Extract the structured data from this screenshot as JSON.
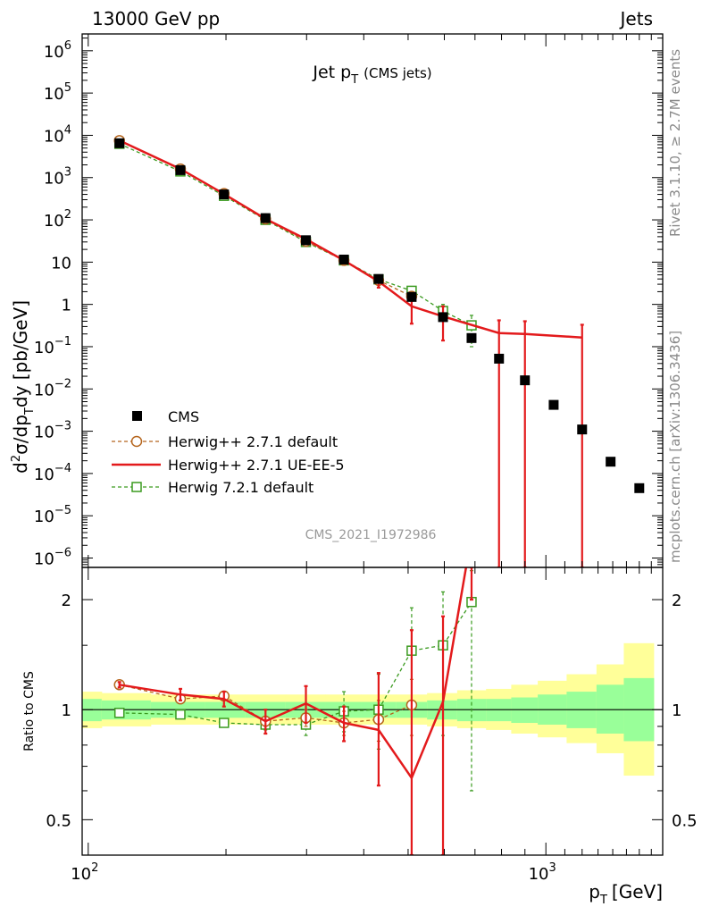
{
  "header": {
    "left": "13000 GeV pp",
    "right": "Jets"
  },
  "side": {
    "rivet": "Rivet 3.1.10, ≥ 2.7M events",
    "mcplots": "mcplots.cern.ch [arXiv:1306.3436]"
  },
  "annotation": "CMS_2021_I1972986",
  "colors": {
    "cms": "#000000",
    "h271def": "#b5651d",
    "h271ue": "#e31a1c",
    "h721": "#3a9a1f",
    "band_inner": "#99ff99",
    "band_outer": "#ffff99"
  },
  "chart_data": [
    {
      "type": "scatter",
      "panel": "main",
      "title": "Jet p_T (CMS jets)",
      "title_main": "Jet p",
      "title_sub": "T",
      "title_extra": "(CMS jets)",
      "ylabel": "d²σ/dp_T dy [pb/GeV]",
      "ylabel_parts": [
        "d",
        "2",
        "σ/dp",
        "T",
        "dy [pb/GeV]"
      ],
      "yscale": "log",
      "ylim": [
        6e-07,
        2500000.0
      ],
      "xscale": "log",
      "xlim": [
        97,
        1800
      ],
      "yticks": [
        {
          "v": 1000000.0,
          "m": "10",
          "e": "6"
        },
        {
          "v": 100000.0,
          "m": "10",
          "e": "5"
        },
        {
          "v": 10000.0,
          "m": "10",
          "e": "4"
        },
        {
          "v": 1000.0,
          "m": "10",
          "e": "3"
        },
        {
          "v": 100,
          "m": "10",
          "e": "2"
        },
        {
          "v": 10,
          "m": "10",
          "e": ""
        },
        {
          "v": 1,
          "m": "1",
          "e": ""
        },
        {
          "v": 0.1,
          "m": "10",
          "e": "−1"
        },
        {
          "v": 0.01,
          "m": "10",
          "e": "−2"
        },
        {
          "v": 0.001,
          "m": "10",
          "e": "−3"
        },
        {
          "v": 0.0001,
          "m": "10",
          "e": "−4"
        },
        {
          "v": 1e-05,
          "m": "10",
          "e": "−5"
        },
        {
          "v": 1e-06,
          "m": "10",
          "e": "−6"
        }
      ],
      "legend": {
        "placement": "lower-left",
        "entries": [
          "CMS",
          "Herwig++ 2.7.1 default",
          "Herwig++ 2.7.1 UE-EE-5",
          "Herwig 7.2.1 default"
        ]
      },
      "series": [
        {
          "name": "CMS",
          "x": [
            117,
            159,
            198,
            244,
            299,
            362,
            431,
            509,
            596,
            688,
            790,
            900,
            1040,
            1200,
            1385,
            1600
          ],
          "y": [
            6500,
            1500,
            400,
            110,
            33,
            11.5,
            4.0,
            1.5,
            0.5,
            0.16,
            0.052,
            0.016,
            0.0042,
            0.0011,
            0.00019,
            4.5e-05
          ]
        },
        {
          "name": "Herwig++ 2.7.1 default",
          "x": [
            117,
            159,
            198,
            244,
            299,
            362,
            431,
            509
          ],
          "y": [
            7500,
            1600,
            420,
            105,
            31,
            11,
            3.7,
            1.55
          ],
          "err_lo": [
            7300,
            1560,
            405,
            100,
            29,
            10.2,
            3.3,
            1.25
          ],
          "err_hi": [
            7700,
            1640,
            435,
            110,
            33,
            11.8,
            4.1,
            1.85
          ]
        },
        {
          "name": "Herwig++ 2.7.1 UE-EE-5",
          "x": [
            117,
            159,
            198,
            244,
            299,
            362,
            431,
            509,
            596,
            790,
            900,
            1200
          ],
          "y": [
            7500,
            1600,
            410,
            105,
            35,
            11,
            3.5,
            0.9,
            0.52,
            0.21,
            0.2,
            0.165
          ],
          "err_lo": [
            7300,
            1520,
            380,
            95,
            30,
            10,
            2.5,
            0.35,
            0.14,
            1e-09,
            1e-09,
            1e-09
          ],
          "err_hi": [
            7700,
            1680,
            440,
            115,
            40,
            12,
            4.5,
            1.4,
            0.9,
            0.42,
            0.4,
            0.33
          ]
        },
        {
          "name": "Herwig 7.2.1 default",
          "x": [
            117,
            159,
            198,
            244,
            299,
            362,
            431,
            509,
            596,
            688
          ],
          "y": [
            6300,
            1400,
            370,
            100,
            30,
            11,
            3.9,
            2.1,
            0.7,
            0.32
          ],
          "err_lo": [
            6150,
            1360,
            355,
            95,
            28,
            10.2,
            3.5,
            1.6,
            0.45,
            0.1
          ],
          "err_hi": [
            6450,
            1440,
            385,
            105,
            32,
            11.8,
            4.3,
            2.6,
            1.0,
            0.55
          ]
        }
      ]
    },
    {
      "type": "line",
      "panel": "ratio",
      "ylabel": "Ratio to CMS",
      "yscale": "log",
      "ylim": [
        0.4,
        2.45
      ],
      "xscale": "log",
      "xlim": [
        97,
        1800
      ],
      "xlabel": "p_T [GeV]",
      "xlabel_main": "p",
      "xlabel_sub": "T",
      "xlabel_unit": "[GeV]",
      "yticks": [
        {
          "v": 0.5,
          "label": "0.5"
        },
        {
          "v": 1,
          "label": "1"
        },
        {
          "v": 2,
          "label": "2"
        }
      ],
      "xticks": [
        {
          "v": 100,
          "m": "10",
          "e": "2"
        },
        {
          "v": 1000,
          "m": "10",
          "e": "3"
        }
      ],
      "band": {
        "edges": [
          97,
          107,
          137,
          180,
          220,
          270,
          330,
          395,
          470,
          550,
          640,
          740,
          840,
          960,
          1110,
          1290,
          1480,
          1720
        ],
        "inner_lo": [
          0.93,
          0.94,
          0.95,
          0.95,
          0.95,
          0.95,
          0.95,
          0.95,
          0.95,
          0.94,
          0.93,
          0.93,
          0.92,
          0.91,
          0.89,
          0.86,
          0.82
        ],
        "inner_hi": [
          1.07,
          1.06,
          1.05,
          1.05,
          1.05,
          1.05,
          1.05,
          1.05,
          1.05,
          1.06,
          1.07,
          1.07,
          1.08,
          1.1,
          1.12,
          1.17,
          1.22
        ],
        "outer_lo": [
          0.89,
          0.9,
          0.91,
          0.91,
          0.91,
          0.91,
          0.91,
          0.91,
          0.91,
          0.9,
          0.89,
          0.88,
          0.86,
          0.84,
          0.81,
          0.76,
          0.66
        ],
        "outer_hi": [
          1.12,
          1.11,
          1.1,
          1.1,
          1.1,
          1.1,
          1.1,
          1.1,
          1.1,
          1.11,
          1.13,
          1.14,
          1.17,
          1.2,
          1.25,
          1.33,
          1.52
        ]
      },
      "series": [
        {
          "name": "Herwig++ 2.7.1 default",
          "x": [
            117,
            159,
            198,
            244,
            299,
            362,
            431,
            509
          ],
          "y": [
            1.17,
            1.07,
            1.09,
            0.93,
            0.95,
            0.92,
            0.94,
            1.03
          ],
          "err_lo": [
            1.15,
            1.05,
            1.06,
            0.9,
            0.9,
            0.85,
            0.82,
            0.85
          ],
          "err_hi": [
            1.19,
            1.09,
            1.12,
            0.96,
            1.0,
            0.99,
            1.06,
            1.21
          ]
        },
        {
          "name": "Herwig++ 2.7.1 UE-EE-5",
          "x": [
            117,
            159,
            198,
            244,
            299,
            362,
            431,
            509,
            596,
            688
          ],
          "y": [
            1.17,
            1.1,
            1.07,
            0.93,
            1.04,
            0.92,
            0.88,
            0.65,
            1.05,
            3.0
          ],
          "err_lo": [
            1.15,
            1.06,
            1.02,
            0.86,
            0.92,
            0.82,
            0.62,
            0.2,
            0.2,
            2.0
          ],
          "err_hi": [
            1.19,
            1.14,
            1.12,
            1.0,
            1.16,
            1.02,
            1.26,
            1.65,
            1.8,
            3.0
          ]
        },
        {
          "name": "Herwig 7.2.1 default",
          "x": [
            117,
            159,
            198,
            244,
            299,
            362,
            431,
            509,
            596,
            688
          ],
          "y": [
            0.98,
            0.97,
            0.92,
            0.91,
            0.91,
            0.99,
            1.0,
            1.45,
            1.5,
            1.97
          ],
          "err_lo": [
            0.96,
            0.95,
            0.9,
            0.88,
            0.85,
            0.87,
            0.78,
            1.05,
            0.85,
            0.6
          ],
          "err_hi": [
            1.0,
            0.99,
            0.94,
            0.94,
            0.97,
            1.12,
            1.25,
            1.9,
            2.1,
            2.4
          ]
        }
      ]
    }
  ]
}
